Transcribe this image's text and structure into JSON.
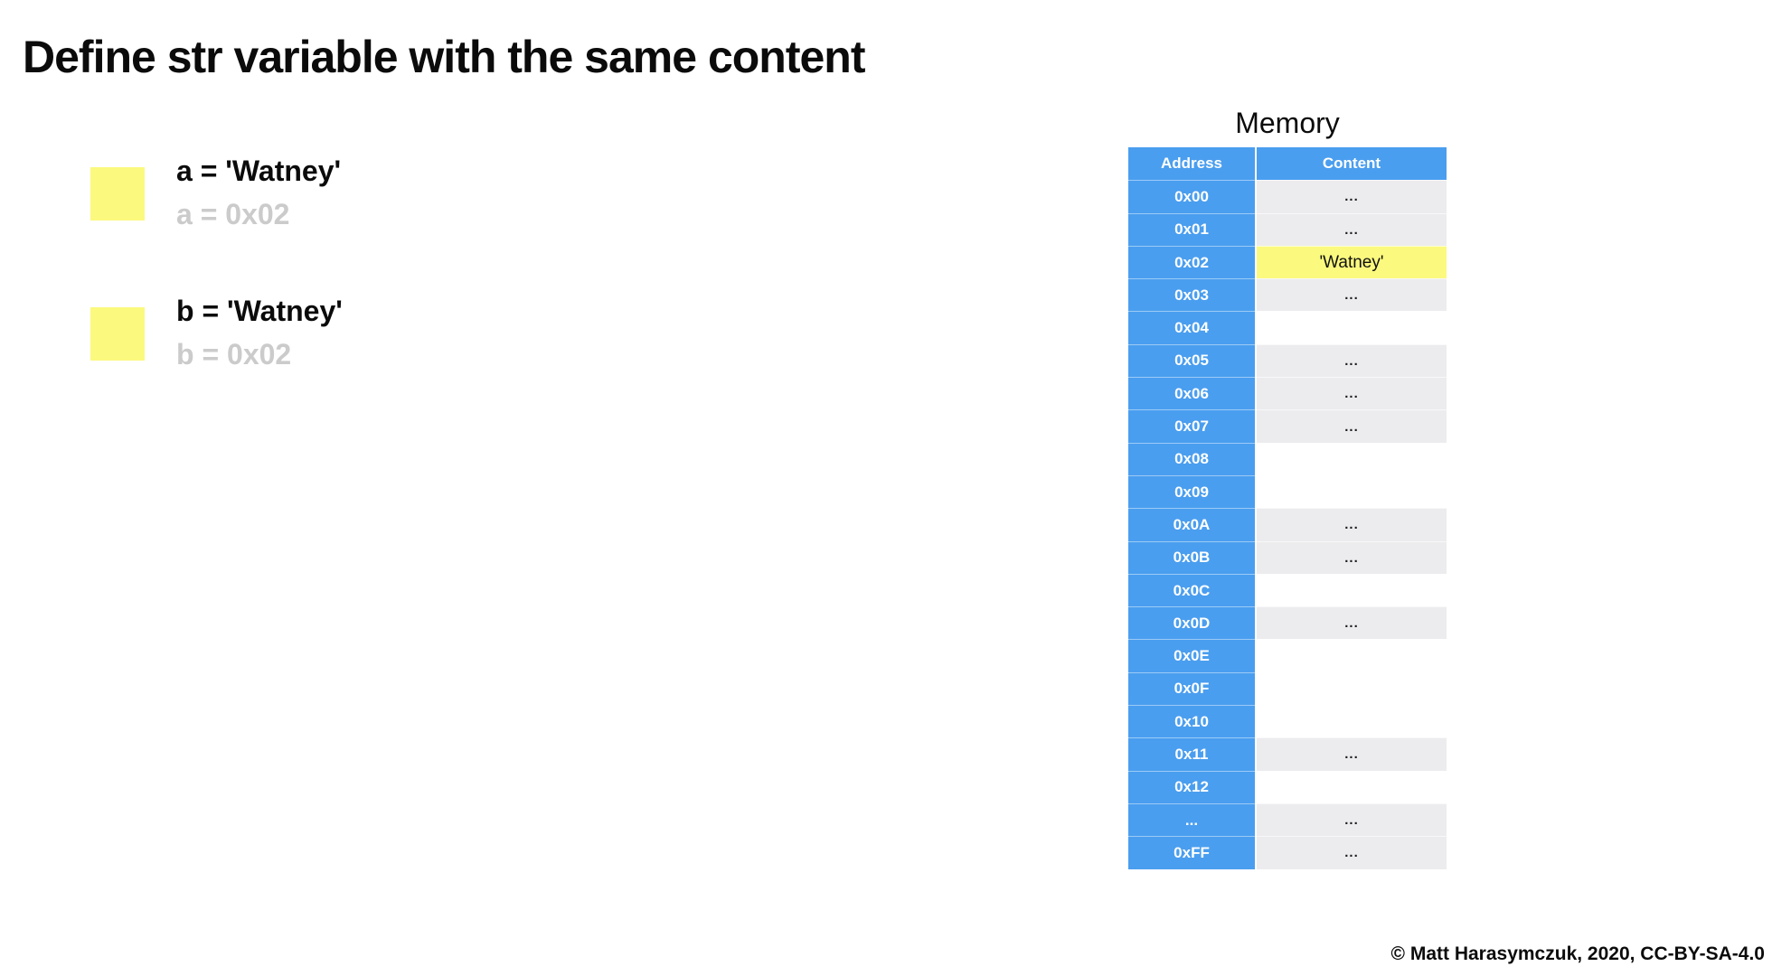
{
  "page": {
    "title": "Define str variable with the same content",
    "footer": "© Matt Harasymczuk, 2020, CC-BY-SA-4.0"
  },
  "notes": [
    {
      "id": "a",
      "code": "a = 'Watney'",
      "pointer": "a = 0x02"
    },
    {
      "id": "b",
      "code": "b = 'Watney'",
      "pointer": "b = 0x02"
    }
  ],
  "memory": {
    "title": "Memory",
    "columns": [
      "Address",
      "Content"
    ],
    "rows": [
      {
        "address": "0x00",
        "content": "...",
        "highlight": false
      },
      {
        "address": "0x01",
        "content": "...",
        "highlight": false
      },
      {
        "address": "0x02",
        "content": "'Watney'",
        "highlight": true
      },
      {
        "address": "0x03",
        "content": "...",
        "highlight": false
      },
      {
        "address": "0x04",
        "content": "",
        "highlight": false
      },
      {
        "address": "0x05",
        "content": "...",
        "highlight": false
      },
      {
        "address": "0x06",
        "content": "...",
        "highlight": false
      },
      {
        "address": "0x07",
        "content": "...",
        "highlight": false
      },
      {
        "address": "0x08",
        "content": "",
        "highlight": false
      },
      {
        "address": "0x09",
        "content": "",
        "highlight": false
      },
      {
        "address": "0x0A",
        "content": "...",
        "highlight": false
      },
      {
        "address": "0x0B",
        "content": "...",
        "highlight": false
      },
      {
        "address": "0x0C",
        "content": "",
        "highlight": false
      },
      {
        "address": "0x0D",
        "content": "...",
        "highlight": false
      },
      {
        "address": "0x0E",
        "content": "",
        "highlight": false
      },
      {
        "address": "0x0F",
        "content": "",
        "highlight": false
      },
      {
        "address": "0x10",
        "content": "",
        "highlight": false
      },
      {
        "address": "0x11",
        "content": "...",
        "highlight": false
      },
      {
        "address": "0x12",
        "content": "",
        "highlight": false
      },
      {
        "address": "...",
        "content": "...",
        "highlight": false
      },
      {
        "address": "0xFF",
        "content": "...",
        "highlight": false
      }
    ]
  },
  "colors": {
    "blue": "#4A9EEF",
    "cell_gray": "#ECECEE",
    "highlight_yellow": "#FBF97E",
    "sticky_yellow": "#FBF97E",
    "muted_text": "#CBCBCB"
  }
}
